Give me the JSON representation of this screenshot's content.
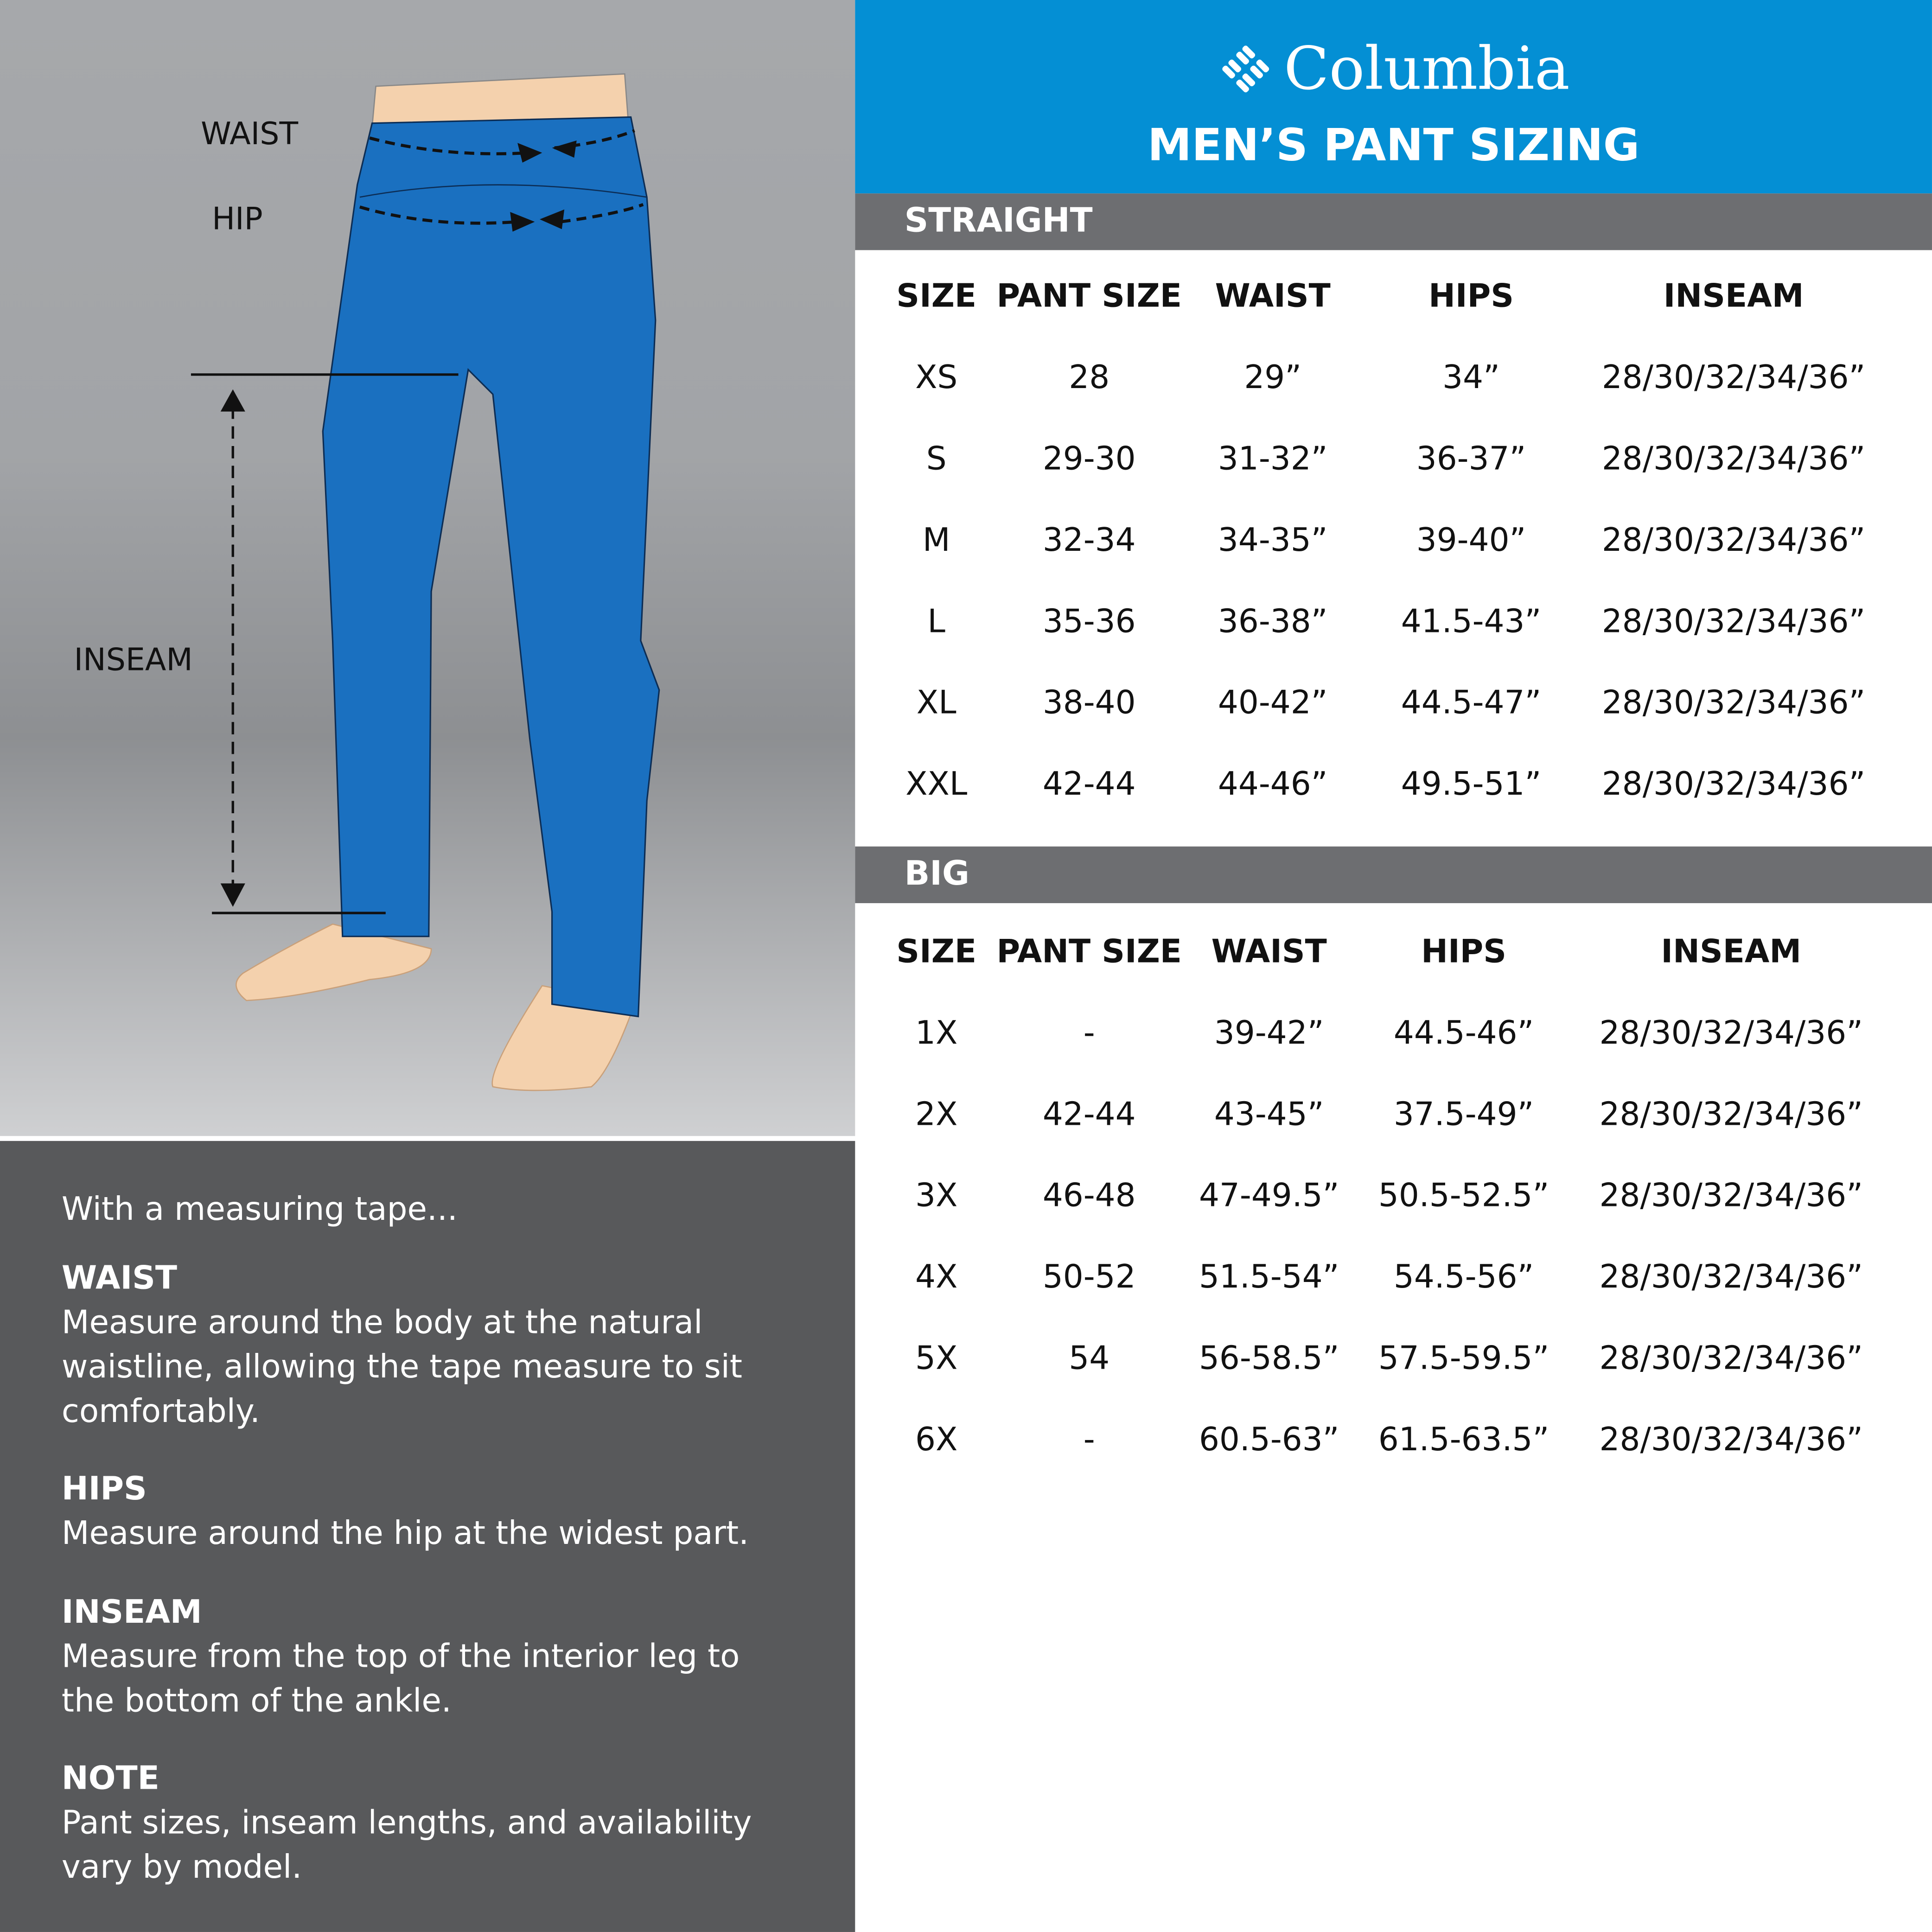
{
  "brand": {
    "name": "Columbia",
    "title": "MEN’S PANT SIZING",
    "color": "#048fd4"
  },
  "illustration": {
    "labels": {
      "waist": "WAIST",
      "hip": "HIP",
      "inseam": "INSEAM"
    }
  },
  "notes": {
    "intro": "With a measuring tape...",
    "items": [
      {
        "heading": "WAIST",
        "text": "Measure around the body at the natural waistline, allowing the tape measure to sit comfortably."
      },
      {
        "heading": "HIPS",
        "text": "Measure around the hip at the widest part."
      },
      {
        "heading": "INSEAM",
        "text": "Measure from the top of the interior leg to the bottom of the ankle."
      },
      {
        "heading": "NOTE",
        "text": "Pant sizes, inseam lengths, and availability vary by model."
      }
    ]
  },
  "tables": [
    {
      "section": "STRAIGHT",
      "headers": [
        "SIZE",
        "PANT SIZE",
        "WAIST",
        "HIPS",
        "INSEAM"
      ],
      "rows": [
        [
          "XS",
          "28",
          "29”",
          "34”",
          "28/30/32/34/36”"
        ],
        [
          "S",
          "29-30",
          "31-32”",
          "36-37”",
          "28/30/32/34/36”"
        ],
        [
          "M",
          "32-34",
          "34-35”",
          "39-40”",
          "28/30/32/34/36”"
        ],
        [
          "L",
          "35-36",
          "36-38”",
          "41.5-43”",
          "28/30/32/34/36”"
        ],
        [
          "XL",
          "38-40",
          "40-42”",
          "44.5-47”",
          "28/30/32/34/36”"
        ],
        [
          "XXL",
          "42-44",
          "44-46”",
          "49.5-51”",
          "28/30/32/34/36”"
        ]
      ]
    },
    {
      "section": "BIG",
      "headers": [
        "SIZE",
        "PANT SIZE",
        "WAIST",
        "HIPS",
        "INSEAM"
      ],
      "rows": [
        [
          "1X",
          "-",
          "39-42”",
          "44.5-46”",
          "28/30/32/34/36”"
        ],
        [
          "2X",
          "42-44",
          "43-45”",
          "37.5-49”",
          "28/30/32/34/36”"
        ],
        [
          "3X",
          "46-48",
          "47-49.5”",
          "50.5-52.5”",
          "28/30/32/34/36”"
        ],
        [
          "4X",
          "50-52",
          "51.5-54”",
          "54.5-56”",
          "28/30/32/34/36”"
        ],
        [
          "5X",
          "54",
          "56-58.5”",
          "57.5-59.5”",
          "28/30/32/34/36”"
        ],
        [
          "6X",
          "-",
          "60.5-63”",
          "61.5-63.5”",
          "28/30/32/34/36”"
        ]
      ]
    }
  ]
}
